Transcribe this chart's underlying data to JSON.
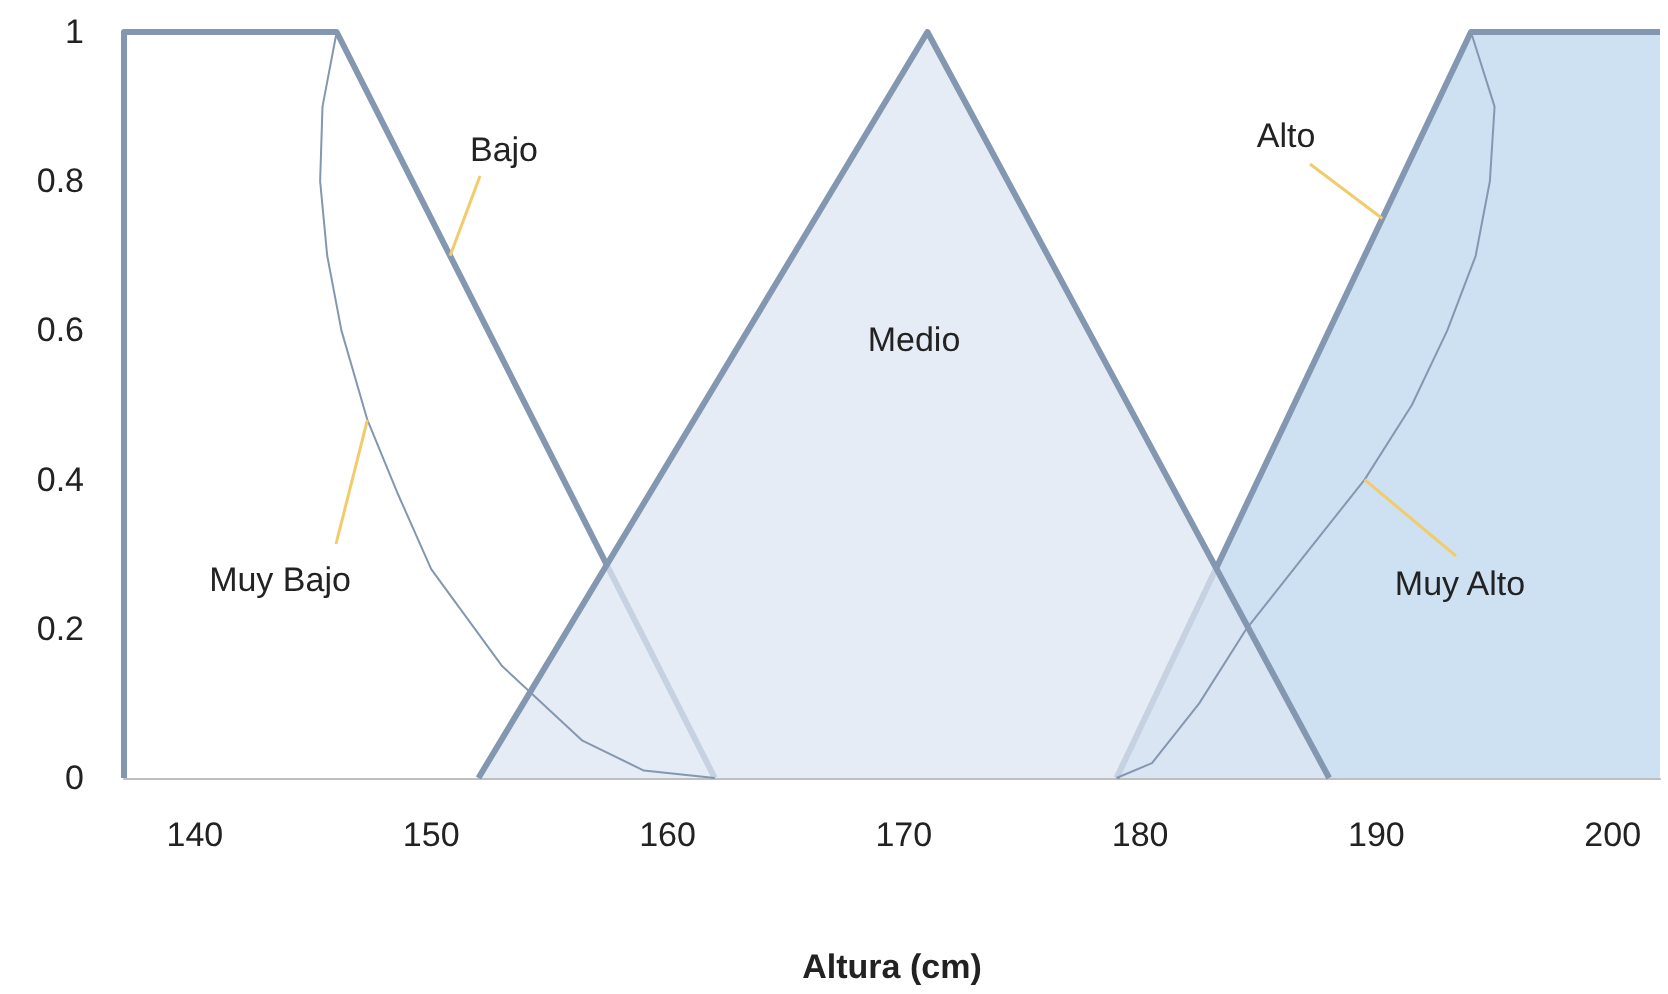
{
  "chart_data": {
    "type": "area",
    "xlabel": "Altura (cm)",
    "xlim": [
      137,
      202
    ],
    "xticks": [
      140,
      150,
      160,
      170,
      180,
      190,
      200
    ],
    "ylim": [
      0,
      1
    ],
    "yticks": [
      0,
      0.2,
      0.4,
      0.6,
      0.8,
      1
    ],
    "grid": false,
    "legend": false,
    "marker": "none",
    "series": [
      {
        "name": "Bajo",
        "color": "#ffffff",
        "x": [
          137,
          137,
          146,
          162
        ],
        "values": [
          0,
          1,
          1,
          0
        ]
      },
      {
        "name": "Muy Bajo",
        "type": "line",
        "color": "#8497b0",
        "x": [
          146,
          145.4,
          145.3,
          145.6,
          146.2,
          147.3,
          148.6,
          150,
          153,
          156.4,
          159,
          162
        ],
        "values": [
          1,
          0.9,
          0.8,
          0.7,
          0.6,
          0.48,
          0.38,
          0.28,
          0.15,
          0.05,
          0.01,
          0
        ]
      },
      {
        "name": "Medio",
        "color": "#dce6f2",
        "x": [
          152,
          171,
          188
        ],
        "values": [
          0,
          1,
          0
        ]
      },
      {
        "name": "Alto",
        "color": "#bdd7ee",
        "x": [
          179,
          194,
          202
        ],
        "values": [
          0,
          1,
          1
        ]
      },
      {
        "name": "Muy Alto",
        "type": "line",
        "color": "#8497b0",
        "x": [
          179,
          180.5,
          182.5,
          184.5,
          187,
          189.5,
          191.5,
          193,
          194.2,
          194.8,
          195,
          194
        ],
        "values": [
          0,
          0.02,
          0.1,
          0.2,
          0.3,
          0.4,
          0.5,
          0.6,
          0.7,
          0.8,
          0.9,
          1
        ]
      }
    ]
  }
}
